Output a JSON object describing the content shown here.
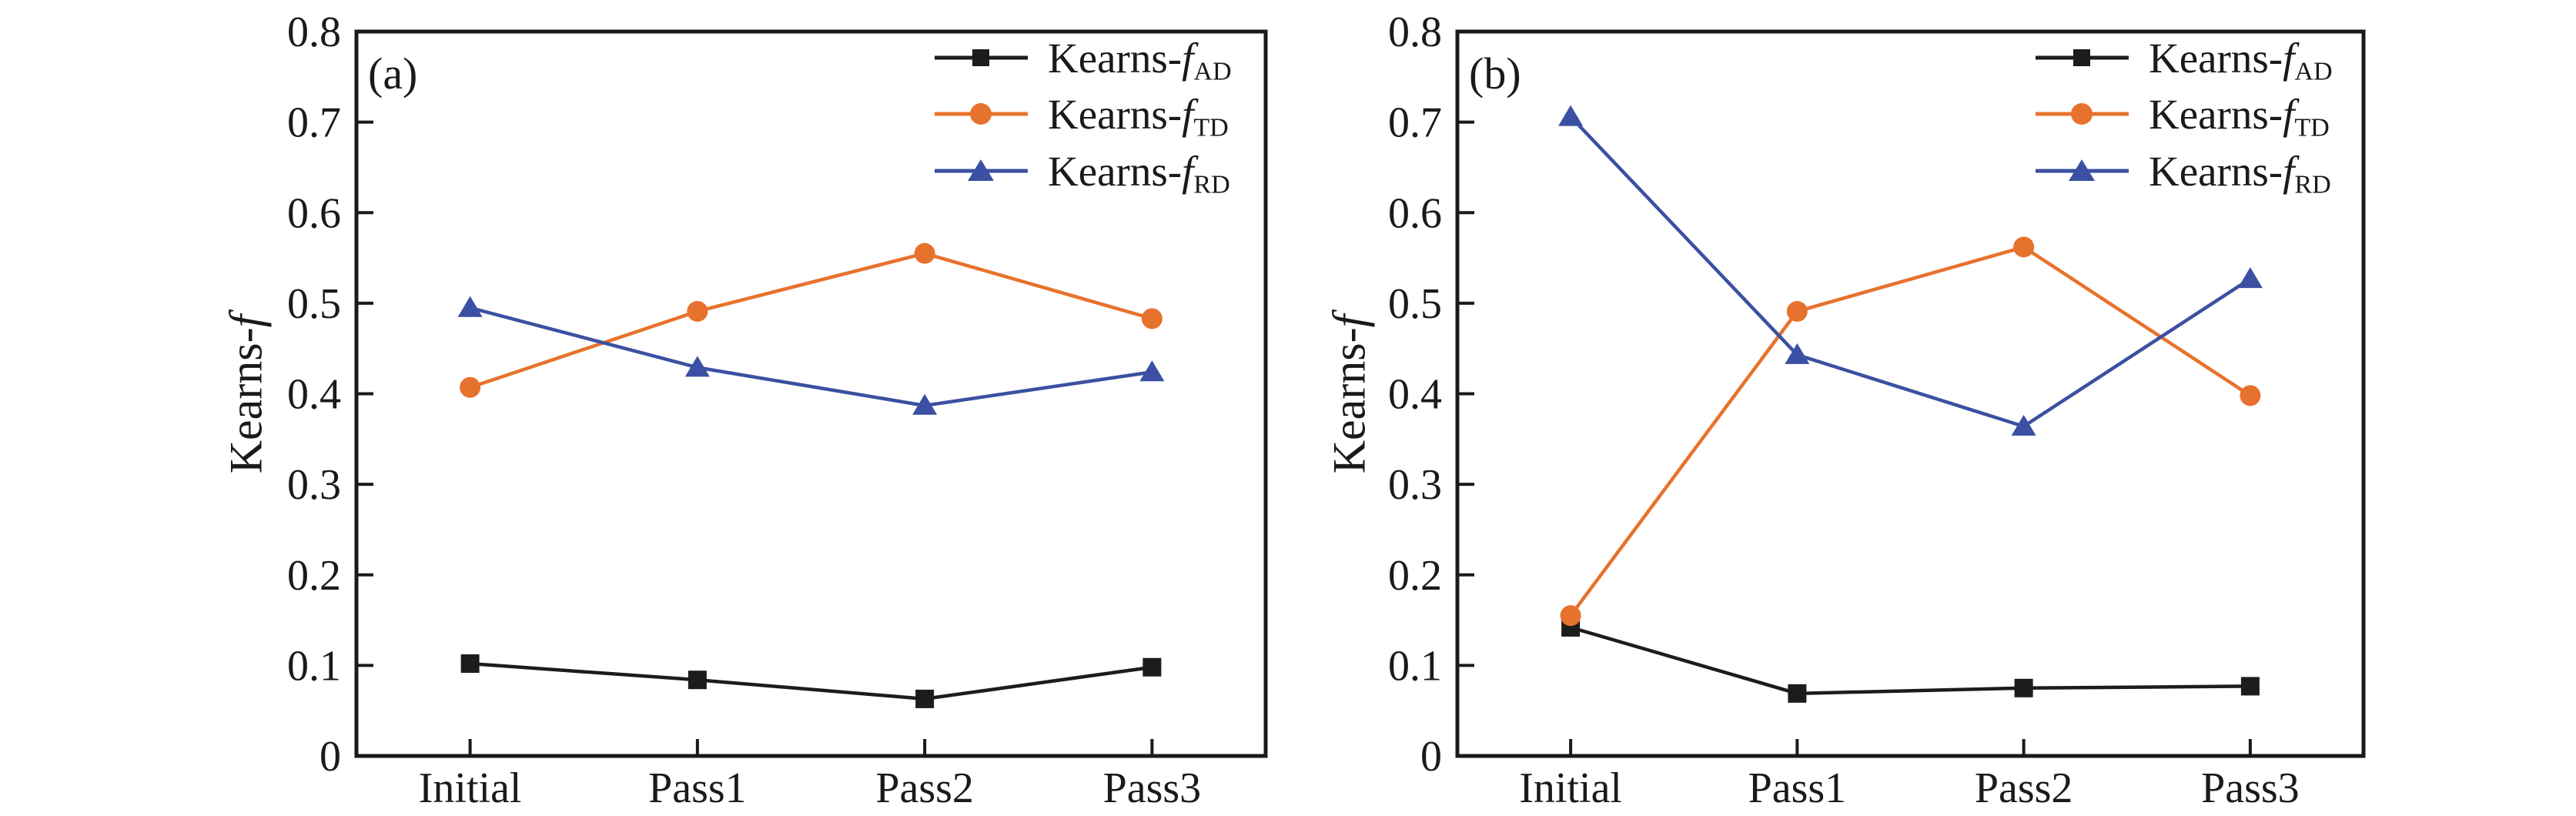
{
  "figure": {
    "background": "#ffffff",
    "axis_color": "#1a1a1a",
    "ylabel_prefix": "Kearns-",
    "ylabel_italic": "f"
  },
  "chart_data": [
    {
      "type": "line",
      "panel_label": "(a)",
      "title": "",
      "xlabel": "",
      "ylabel": "Kearns-f",
      "ylim": [
        0,
        0.8
      ],
      "ytick_step": 0.1,
      "yticks": [
        "0",
        "0.1",
        "0.2",
        "0.3",
        "0.4",
        "0.5",
        "0.6",
        "0.7",
        "0.8"
      ],
      "categories": [
        "Initial",
        "Pass1",
        "Pass2",
        "Pass3"
      ],
      "grid": false,
      "legend_position": "top-right-inside",
      "series": [
        {
          "name_prefix": "Kearns-",
          "name_italic": "f",
          "name_sub": "AD",
          "marker": "square",
          "color": "#1c1c1c",
          "values": [
            0.102,
            0.084,
            0.063,
            0.098
          ]
        },
        {
          "name_prefix": "Kearns-",
          "name_italic": "f",
          "name_sub": "TD",
          "marker": "circle",
          "color": "#e7722d",
          "values": [
            0.407,
            0.491,
            0.555,
            0.483
          ]
        },
        {
          "name_prefix": "Kearns-",
          "name_italic": "f",
          "name_sub": "RD",
          "marker": "triangle",
          "color": "#3b50a2",
          "values": [
            0.495,
            0.429,
            0.387,
            0.424
          ]
        }
      ]
    },
    {
      "type": "line",
      "panel_label": "(b)",
      "title": "",
      "xlabel": "",
      "ylabel": "Kearns-f",
      "ylim": [
        0,
        0.8
      ],
      "ytick_step": 0.1,
      "yticks": [
        "0",
        "0.1",
        "0.2",
        "0.3",
        "0.4",
        "0.5",
        "0.6",
        "0.7",
        "0.8"
      ],
      "categories": [
        "Initial",
        "Pass1",
        "Pass2",
        "Pass3"
      ],
      "grid": false,
      "legend_position": "top-right-inside",
      "series": [
        {
          "name_prefix": "Kearns-",
          "name_italic": "f",
          "name_sub": "AD",
          "marker": "square",
          "color": "#1c1c1c",
          "values": [
            0.142,
            0.069,
            0.075,
            0.077
          ]
        },
        {
          "name_prefix": "Kearns-",
          "name_italic": "f",
          "name_sub": "TD",
          "marker": "circle",
          "color": "#e7722d",
          "values": [
            0.155,
            0.491,
            0.562,
            0.398
          ]
        },
        {
          "name_prefix": "Kearns-",
          "name_italic": "f",
          "name_sub": "RD",
          "marker": "triangle",
          "color": "#3b50a2",
          "values": [
            0.706,
            0.443,
            0.364,
            0.527
          ]
        }
      ]
    }
  ]
}
